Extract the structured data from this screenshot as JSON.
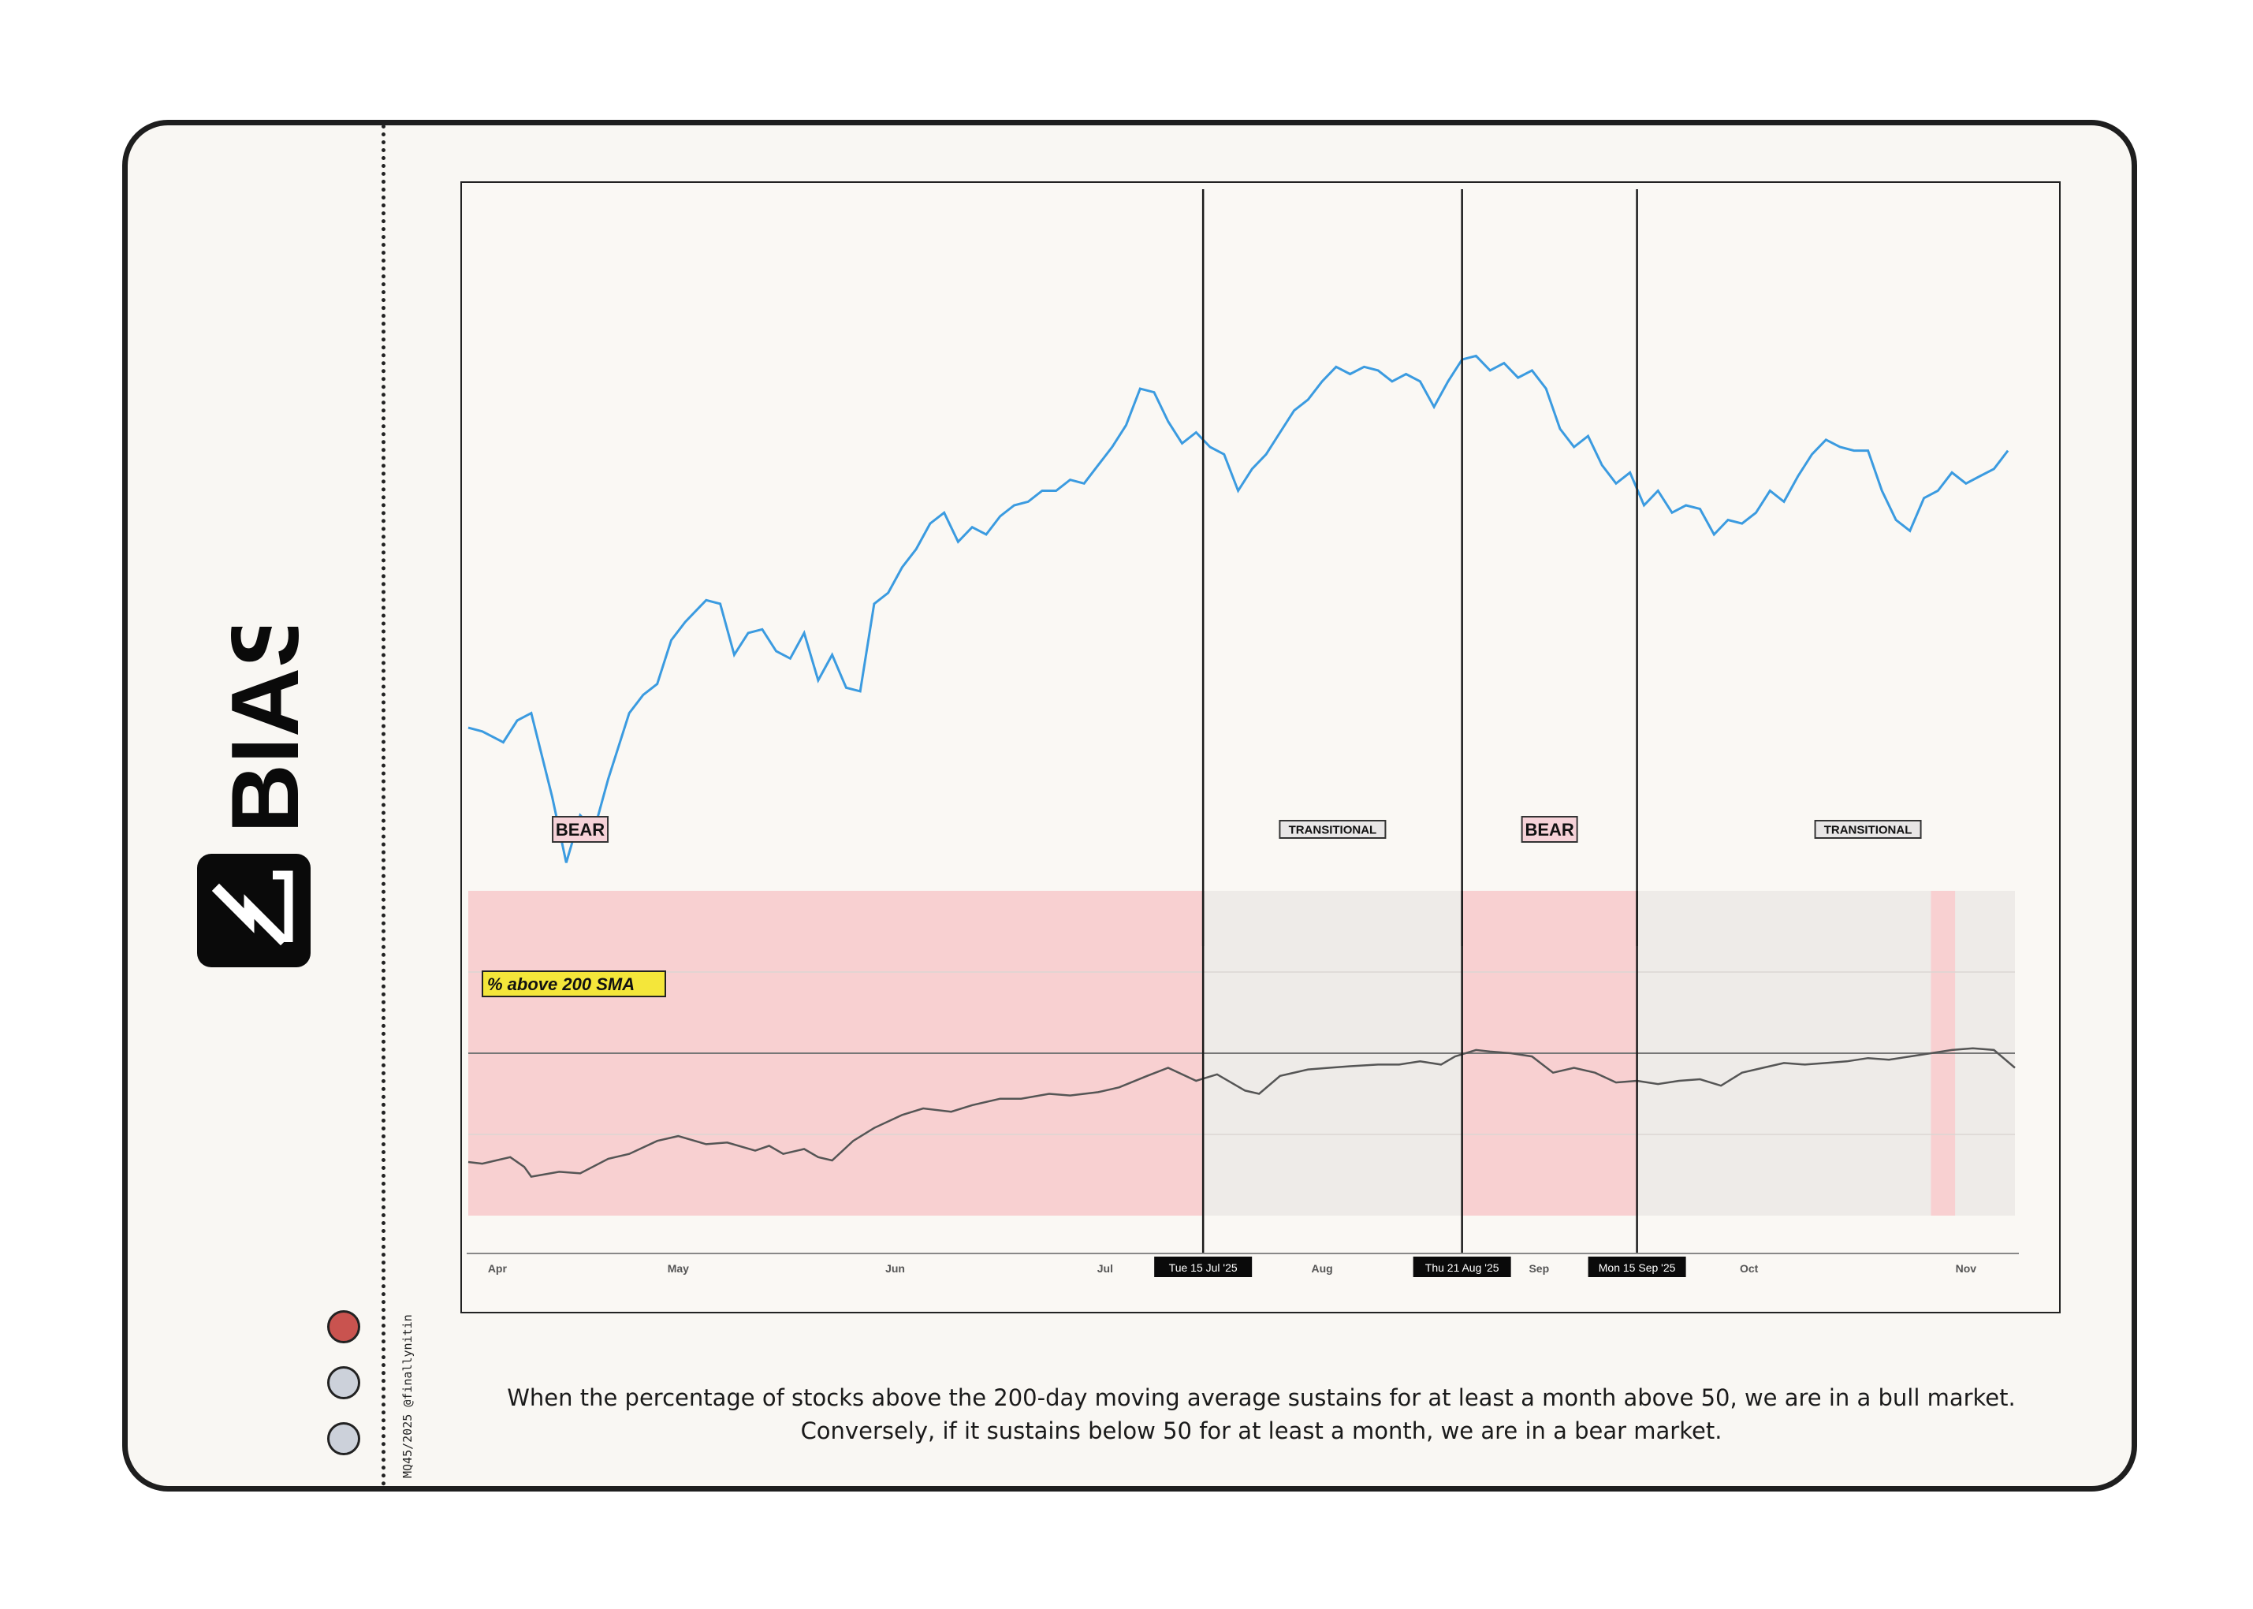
{
  "brand": {
    "name": "BIAS"
  },
  "credit": "MQ45/2025 @finallynitin",
  "caption": "When the percentage of stocks above the 200-day moving average sustains for at least a month above 50, we are in a bull market. Conversely, if it sustains below 50 for at least a month, we are in a bear market.",
  "indicators": [
    {
      "name": "status-dot-red",
      "color": "#c9534f"
    },
    {
      "name": "status-dot-grey",
      "color": "#ccd1da"
    },
    {
      "name": "status-dot-grey",
      "color": "#ccd1da"
    }
  ],
  "chart_data": {
    "type": "line",
    "x_start": "2025-04-01",
    "x_end": "2025-11-08",
    "months": [
      {
        "label": "Apr",
        "date": "2025-04-02"
      },
      {
        "label": "May",
        "date": "2025-05-01"
      },
      {
        "label": "Jun",
        "date": "2025-06-01"
      },
      {
        "label": "Jul",
        "date": "2025-07-01"
      },
      {
        "label": "Aug",
        "date": "2025-08-01"
      },
      {
        "label": "Sep",
        "date": "2025-09-01"
      },
      {
        "label": "Oct",
        "date": "2025-10-01"
      },
      {
        "label": "Nov",
        "date": "2025-11-01"
      }
    ],
    "markers": [
      {
        "date": "2025-07-15",
        "label": "Tue 15 Jul '25"
      },
      {
        "date": "2025-08-21",
        "label": "Thu 21 Aug '25"
      },
      {
        "date": "2025-09-15",
        "label": "Mon 15 Sep '25"
      }
    ],
    "regimes": [
      {
        "label": "BEAR",
        "start": "2025-04-01",
        "end": "2025-07-15",
        "type": "bear"
      },
      {
        "label": "TRANSITIONAL",
        "start": "2025-07-15",
        "end": "2025-08-21",
        "type": "transitional"
      },
      {
        "label": "BEAR",
        "start": "2025-08-21",
        "end": "2025-09-15",
        "type": "bear"
      },
      {
        "label": "TRANSITIONAL",
        "start": "2025-09-15",
        "end": "2025-11-08",
        "type": "transitional"
      }
    ],
    "short_bear_band": {
      "start": "2025-10-27",
      "end": "2025-10-30"
    },
    "colors": {
      "price_line": "#3b9be0",
      "breadth_line": "#555555",
      "bear_fill": "#f8d0d1",
      "transitional_fill": "#eeebe8",
      "label_fill_bear": "#f6d2d8",
      "label_fill_transitional": "#e8e6e6",
      "breadth_tag_fill": "#f4e63a"
    },
    "breadth_series": {
      "name": "% above 200 SMA",
      "ylim": [
        0,
        100
      ],
      "reference": 50,
      "points": [
        [
          "2025-04-01",
          16.5
        ],
        [
          "2025-04-03",
          16.0
        ],
        [
          "2025-04-07",
          18.0
        ],
        [
          "2025-04-09",
          15.0
        ],
        [
          "2025-04-10",
          12.0
        ],
        [
          "2025-04-14",
          13.5
        ],
        [
          "2025-04-17",
          13.0
        ],
        [
          "2025-04-21",
          17.5
        ],
        [
          "2025-04-24",
          19.0
        ],
        [
          "2025-04-28",
          23.0
        ],
        [
          "2025-05-01",
          24.5
        ],
        [
          "2025-05-05",
          22.0
        ],
        [
          "2025-05-08",
          22.5
        ],
        [
          "2025-05-12",
          20.0
        ],
        [
          "2025-05-14",
          21.5
        ],
        [
          "2025-05-16",
          19.0
        ],
        [
          "2025-05-19",
          20.5
        ],
        [
          "2025-05-21",
          18.0
        ],
        [
          "2025-05-23",
          17.0
        ],
        [
          "2025-05-26",
          23.0
        ],
        [
          "2025-05-29",
          27.0
        ],
        [
          "2025-06-02",
          31.0
        ],
        [
          "2025-06-05",
          33.0
        ],
        [
          "2025-06-09",
          32.0
        ],
        [
          "2025-06-12",
          34.0
        ],
        [
          "2025-06-16",
          36.0
        ],
        [
          "2025-06-19",
          36.0
        ],
        [
          "2025-06-23",
          37.5
        ],
        [
          "2025-06-26",
          37.0
        ],
        [
          "2025-06-30",
          38.0
        ],
        [
          "2025-07-03",
          39.5
        ],
        [
          "2025-07-07",
          43.0
        ],
        [
          "2025-07-10",
          45.5
        ],
        [
          "2025-07-14",
          41.5
        ],
        [
          "2025-07-17",
          43.5
        ],
        [
          "2025-07-21",
          38.5
        ],
        [
          "2025-07-23",
          37.5
        ],
        [
          "2025-07-26",
          43.0
        ],
        [
          "2025-07-30",
          45.0
        ],
        [
          "2025-08-02",
          45.5
        ],
        [
          "2025-08-05",
          46.0
        ],
        [
          "2025-08-09",
          46.5
        ],
        [
          "2025-08-12",
          46.5
        ],
        [
          "2025-08-15",
          47.5
        ],
        [
          "2025-08-18",
          46.5
        ],
        [
          "2025-08-20",
          49.0
        ],
        [
          "2025-08-23",
          51.0
        ],
        [
          "2025-08-25",
          50.5
        ],
        [
          "2025-08-28",
          50.0
        ],
        [
          "2025-08-31",
          49.0
        ],
        [
          "2025-09-03",
          44.0
        ],
        [
          "2025-09-06",
          45.5
        ],
        [
          "2025-09-09",
          44.0
        ],
        [
          "2025-09-12",
          41.0
        ],
        [
          "2025-09-15",
          41.5
        ],
        [
          "2025-09-18",
          40.5
        ],
        [
          "2025-09-21",
          41.5
        ],
        [
          "2025-09-24",
          42.0
        ],
        [
          "2025-09-27",
          40.0
        ],
        [
          "2025-09-30",
          44.0
        ],
        [
          "2025-10-03",
          45.5
        ],
        [
          "2025-10-06",
          47.0
        ],
        [
          "2025-10-09",
          46.5
        ],
        [
          "2025-10-12",
          47.0
        ],
        [
          "2025-10-15",
          47.5
        ],
        [
          "2025-10-18",
          48.5
        ],
        [
          "2025-10-21",
          48.0
        ],
        [
          "2025-10-24",
          49.0
        ],
        [
          "2025-10-27",
          50.0
        ],
        [
          "2025-10-30",
          51.0
        ],
        [
          "2025-11-02",
          51.5
        ],
        [
          "2025-11-05",
          51.0
        ],
        [
          "2025-11-08",
          45.5
        ]
      ]
    },
    "price_series": {
      "points": [
        [
          "2025-04-01",
          43
        ],
        [
          "2025-04-03",
          42
        ],
        [
          "2025-04-06",
          39
        ],
        [
          "2025-04-08",
          45
        ],
        [
          "2025-04-10",
          47
        ],
        [
          "2025-04-13",
          24
        ],
        [
          "2025-04-15",
          6
        ],
        [
          "2025-04-17",
          19
        ],
        [
          "2025-04-19",
          15
        ],
        [
          "2025-04-21",
          29
        ],
        [
          "2025-04-24",
          47
        ],
        [
          "2025-04-26",
          52
        ],
        [
          "2025-04-28",
          55
        ],
        [
          "2025-04-30",
          67
        ],
        [
          "2025-05-02",
          72
        ],
        [
          "2025-05-05",
          78
        ],
        [
          "2025-05-07",
          77
        ],
        [
          "2025-05-09",
          63
        ],
        [
          "2025-05-11",
          69
        ],
        [
          "2025-05-13",
          70
        ],
        [
          "2025-05-15",
          64
        ],
        [
          "2025-05-17",
          62
        ],
        [
          "2025-05-19",
          69
        ],
        [
          "2025-05-21",
          56
        ],
        [
          "2025-05-23",
          63
        ],
        [
          "2025-05-25",
          54
        ],
        [
          "2025-05-27",
          53
        ],
        [
          "2025-05-29",
          77
        ],
        [
          "2025-05-31",
          80
        ],
        [
          "2025-06-02",
          87
        ],
        [
          "2025-06-04",
          92
        ],
        [
          "2025-06-06",
          99
        ],
        [
          "2025-06-08",
          102
        ],
        [
          "2025-06-10",
          94
        ],
        [
          "2025-06-12",
          98
        ],
        [
          "2025-06-14",
          96
        ],
        [
          "2025-06-16",
          101
        ],
        [
          "2025-06-18",
          104
        ],
        [
          "2025-06-20",
          105
        ],
        [
          "2025-06-22",
          108
        ],
        [
          "2025-06-24",
          108
        ],
        [
          "2025-06-26",
          111
        ],
        [
          "2025-06-28",
          110
        ],
        [
          "2025-06-30",
          115
        ],
        [
          "2025-07-02",
          120
        ],
        [
          "2025-07-04",
          126
        ],
        [
          "2025-07-06",
          136
        ],
        [
          "2025-07-08",
          135
        ],
        [
          "2025-07-10",
          127
        ],
        [
          "2025-07-12",
          121
        ],
        [
          "2025-07-14",
          124
        ],
        [
          "2025-07-16",
          120
        ],
        [
          "2025-07-18",
          118
        ],
        [
          "2025-07-20",
          108
        ],
        [
          "2025-07-22",
          114
        ],
        [
          "2025-07-24",
          118
        ],
        [
          "2025-07-26",
          124
        ],
        [
          "2025-07-28",
          130
        ],
        [
          "2025-07-30",
          133
        ],
        [
          "2025-08-01",
          138
        ],
        [
          "2025-08-03",
          142
        ],
        [
          "2025-08-05",
          140
        ],
        [
          "2025-08-07",
          142
        ],
        [
          "2025-08-09",
          141
        ],
        [
          "2025-08-11",
          138
        ],
        [
          "2025-08-13",
          140
        ],
        [
          "2025-08-15",
          138
        ],
        [
          "2025-08-17",
          131
        ],
        [
          "2025-08-19",
          138
        ],
        [
          "2025-08-21",
          144
        ],
        [
          "2025-08-23",
          145
        ],
        [
          "2025-08-25",
          141
        ],
        [
          "2025-08-27",
          143
        ],
        [
          "2025-08-29",
          139
        ],
        [
          "2025-08-31",
          141
        ],
        [
          "2025-09-02",
          136
        ],
        [
          "2025-09-04",
          125
        ],
        [
          "2025-09-06",
          120
        ],
        [
          "2025-09-08",
          123
        ],
        [
          "2025-09-10",
          115
        ],
        [
          "2025-09-12",
          110
        ],
        [
          "2025-09-14",
          113
        ],
        [
          "2025-09-16",
          104
        ],
        [
          "2025-09-18",
          108
        ],
        [
          "2025-09-20",
          102
        ],
        [
          "2025-09-22",
          104
        ],
        [
          "2025-09-24",
          103
        ],
        [
          "2025-09-26",
          96
        ],
        [
          "2025-09-28",
          100
        ],
        [
          "2025-09-30",
          99
        ],
        [
          "2025-10-02",
          102
        ],
        [
          "2025-10-04",
          108
        ],
        [
          "2025-10-06",
          105
        ],
        [
          "2025-10-08",
          112
        ],
        [
          "2025-10-10",
          118
        ],
        [
          "2025-10-12",
          122
        ],
        [
          "2025-10-14",
          120
        ],
        [
          "2025-10-16",
          119
        ],
        [
          "2025-10-18",
          119
        ],
        [
          "2025-10-20",
          108
        ],
        [
          "2025-10-22",
          100
        ],
        [
          "2025-10-24",
          97
        ],
        [
          "2025-10-26",
          106
        ],
        [
          "2025-10-28",
          108
        ],
        [
          "2025-10-30",
          113
        ],
        [
          "2025-11-01",
          110
        ],
        [
          "2025-11-03",
          112
        ],
        [
          "2025-11-05",
          114
        ],
        [
          "2025-11-07",
          119
        ]
      ]
    }
  }
}
